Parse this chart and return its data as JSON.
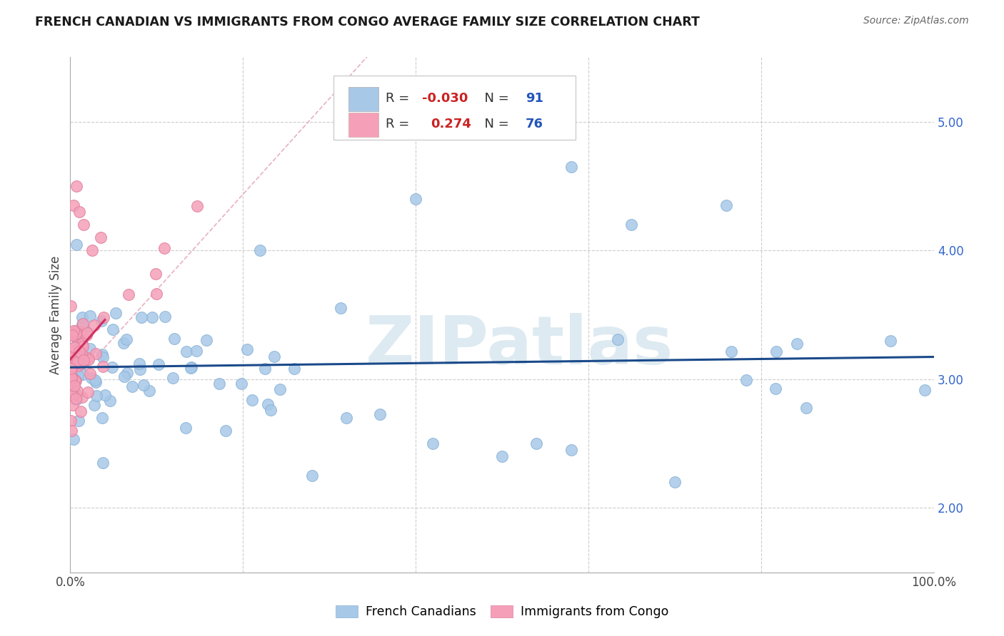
{
  "title": "FRENCH CANADIAN VS IMMIGRANTS FROM CONGO AVERAGE FAMILY SIZE CORRELATION CHART",
  "source": "Source: ZipAtlas.com",
  "ylabel": "Average Family Size",
  "right_yticks": [
    2.0,
    3.0,
    4.0,
    5.0
  ],
  "blue_R": -0.03,
  "blue_N": 91,
  "pink_R": 0.274,
  "pink_N": 76,
  "blue_color": "#a8c8e8",
  "blue_edge_color": "#8ab4d8",
  "blue_line_color": "#1a4a8a",
  "pink_color": "#f5a0b8",
  "pink_edge_color": "#e080a0",
  "pink_line_color": "#d03060",
  "ref_line_color": "#e8b0c0",
  "watermark": "ZIPatlas",
  "watermark_color": "#c8dce8",
  "legend_label_blue": "French Canadians",
  "legend_label_pink": "Immigrants from Congo",
  "xlim": [
    0,
    100
  ],
  "ylim": [
    1.5,
    5.5
  ],
  "figsize": [
    14.06,
    8.92
  ],
  "dpi": 100
}
